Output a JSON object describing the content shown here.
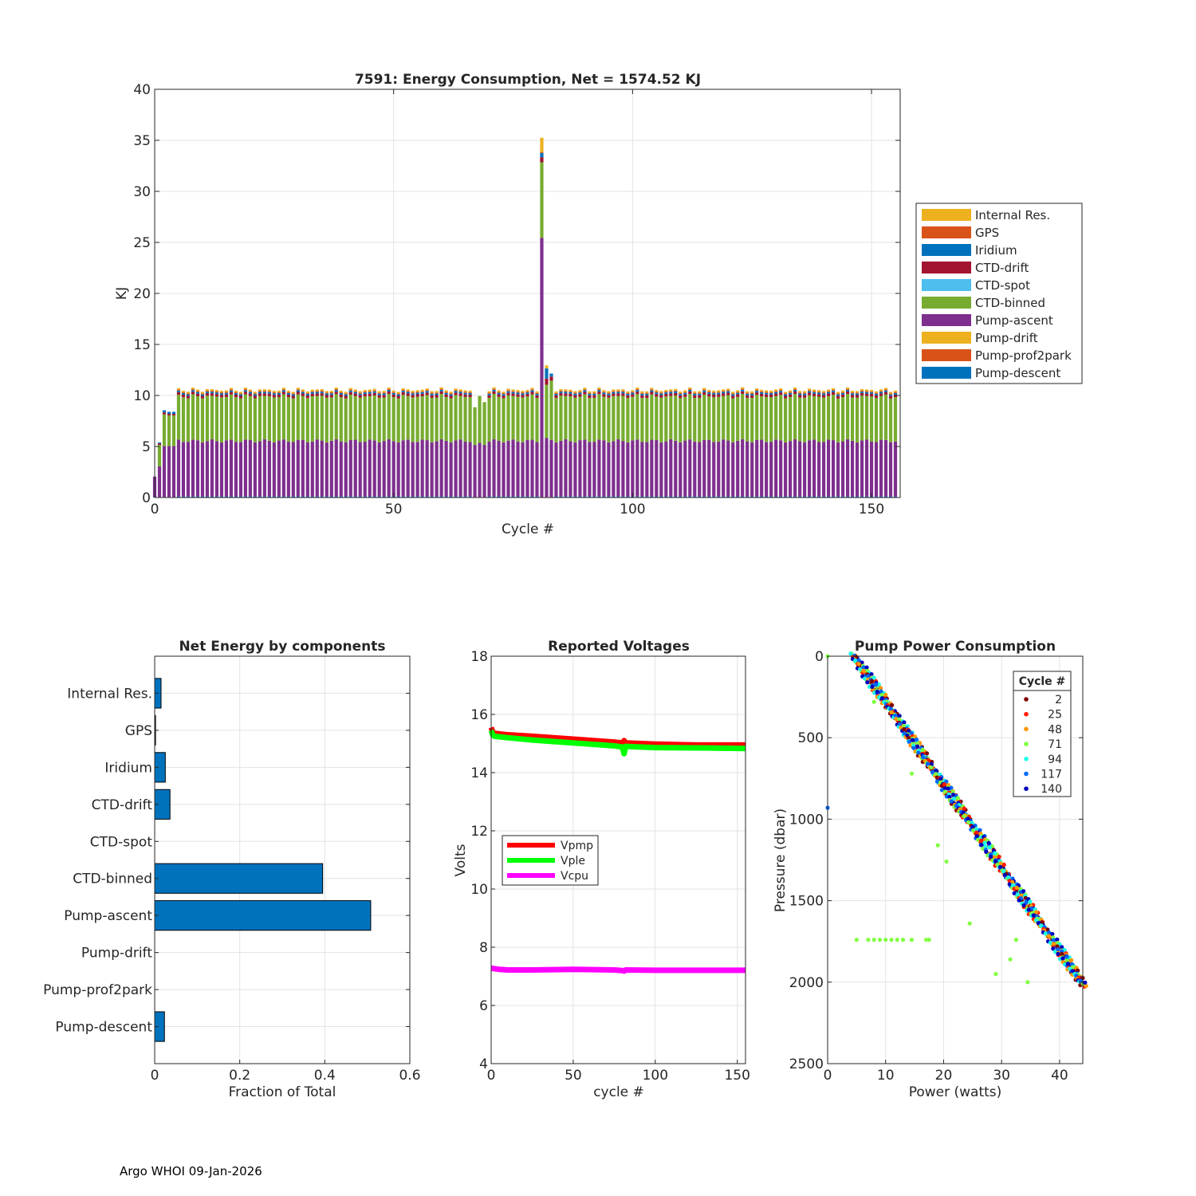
{
  "footer": "Argo WHOI 09-Jan-2026",
  "colors": {
    "internal_res": "#EDB120",
    "gps": "#D95319",
    "iridium": "#0072BD",
    "ctd_drift": "#A2142F",
    "ctd_spot": "#4DBEEE",
    "ctd_binned": "#77AC30",
    "pump_ascent": "#7E2F8E",
    "pump_drift": "#EDB120",
    "pump_prof2park": "#D95319",
    "pump_descent": "#0072BD",
    "bar_fill": "#0072BD",
    "vpmp": "#FF0000",
    "vple": "#00FF00",
    "vcpu": "#FF00FF"
  },
  "chart_data": [
    {
      "id": "energy",
      "type": "bar",
      "stacked": true,
      "title": "7591: Energy Consumption,  Net = 1574.52 KJ",
      "xlabel": "Cycle #",
      "ylabel": "KJ",
      "xlim": [
        0,
        156
      ],
      "ylim": [
        0,
        40
      ],
      "xticks": [
        0,
        50,
        100,
        150
      ],
      "yticks": [
        0,
        5,
        10,
        15,
        20,
        25,
        30,
        35,
        40
      ],
      "grid": true,
      "legend_position": "outside-right",
      "legend": [
        "Internal Res.",
        "GPS",
        "Iridium",
        "CTD-drift",
        "CTD-spot",
        "CTD-binned",
        "Pump-ascent",
        "Pump-drift",
        "Pump-prof2park",
        "Pump-descent"
      ],
      "cycles": {
        "count": 156,
        "typical_components": {
          "Pump-descent": 0.1,
          "Pump-ascent": 5.45,
          "CTD-binned": 4.35,
          "CTD-drift": 0.25,
          "Iridium": 0.15,
          "GPS": 0.1,
          "Internal Res.": 0.15
        },
        "special": [
          {
            "cycle": 0,
            "Pump-ascent": 2.0
          },
          {
            "cycle": 1,
            "Pump-ascent": 3.0,
            "CTD-binned": 2.1,
            "CTD-drift": 0.15,
            "Iridium": 0.1
          },
          {
            "cycle": 2,
            "Pump-ascent": 5.0,
            "CTD-binned": 3.1,
            "CTD-drift": 0.2,
            "Iridium": 0.2
          },
          {
            "cycle": 3,
            "Pump-ascent": 5.0,
            "CTD-binned": 3.0,
            "CTD-drift": 0.15,
            "Iridium": 0.2
          },
          {
            "cycle": 4,
            "Pump-ascent": 5.0,
            "CTD-binned": 3.0,
            "CTD-drift": 0.15,
            "Iridium": 0.2
          },
          {
            "cycle": 67,
            "Pump-ascent": 5.1,
            "CTD-binned": 3.7
          },
          {
            "cycle": 68,
            "Pump-ascent": 5.3,
            "CTD-binned": 4.6
          },
          {
            "cycle": 69,
            "Pump-ascent": 5.1,
            "CTD-binned": 4.2
          },
          {
            "cycle": 81,
            "Pump-ascent": 25.4,
            "CTD-binned": 7.4,
            "CTD-drift": 0.5,
            "Iridium": 0.4,
            "GPS": 0.1,
            "Internal Res.": 1.4
          },
          {
            "cycle": 82,
            "Pump-ascent": 5.8,
            "CTD-binned": 5.2,
            "CTD-drift": 0.6,
            "Iridium": 1.0,
            "Internal Res.": 0.3
          },
          {
            "cycle": 83,
            "Pump-ascent": 5.6,
            "CTD-binned": 5.8,
            "CTD-drift": 0.4,
            "Iridium": 0.3
          }
        ]
      }
    },
    {
      "id": "components",
      "type": "bar",
      "orientation": "horizontal",
      "title": "Net Energy by components",
      "xlabel": "Fraction of Total",
      "xlim": [
        0,
        0.6
      ],
      "xticks": [
        0,
        0.2,
        0.4,
        0.6
      ],
      "grid": true,
      "categories": [
        "Internal Res.",
        "GPS",
        "Iridium",
        "CTD-drift",
        "CTD-spot",
        "CTD-binned",
        "Pump-ascent",
        "Pump-drift",
        "Pump-prof2park",
        "Pump-descent"
      ],
      "values": [
        0.015,
        0.002,
        0.025,
        0.036,
        0.0,
        0.395,
        0.508,
        0.0,
        0.0,
        0.023
      ]
    },
    {
      "id": "voltages",
      "type": "line",
      "title": "Reported Voltages",
      "xlabel": "cycle #",
      "ylabel": "Volts",
      "xlim": [
        0,
        155
      ],
      "ylim": [
        4,
        18
      ],
      "xticks": [
        0,
        50,
        100,
        150
      ],
      "yticks": [
        4,
        6,
        8,
        10,
        12,
        14,
        16,
        18
      ],
      "grid": true,
      "legend_position": "center-left",
      "series": [
        {
          "name": "Vpmp",
          "x": [
            0,
            1,
            2,
            10,
            25,
            50,
            75,
            80,
            81,
            82,
            100,
            125,
            155
          ],
          "y": [
            15.55,
            15.4,
            15.35,
            15.3,
            15.25,
            15.15,
            15.05,
            15.02,
            15.1,
            15.02,
            14.98,
            14.95,
            14.95
          ]
        },
        {
          "name": "Vple",
          "x": [
            0,
            1,
            2,
            10,
            25,
            50,
            75,
            80,
            81,
            82,
            100,
            125,
            155
          ],
          "y": [
            15.45,
            15.3,
            15.25,
            15.2,
            15.12,
            15.02,
            14.92,
            14.88,
            14.65,
            14.9,
            14.86,
            14.85,
            14.83
          ]
        },
        {
          "name": "Vcpu",
          "x": [
            0,
            5,
            10,
            25,
            50,
            75,
            80,
            81,
            82,
            100,
            125,
            155
          ],
          "y": [
            7.28,
            7.24,
            7.22,
            7.22,
            7.24,
            7.22,
            7.2,
            7.18,
            7.22,
            7.21,
            7.21,
            7.21
          ]
        }
      ]
    },
    {
      "id": "pump",
      "type": "scatter",
      "title": "Pump Power Consumption",
      "xlabel": "Power (watts)",
      "ylabel": "Pressure (dbar)",
      "xlim": [
        0,
        44
      ],
      "ylim": [
        0,
        2500
      ],
      "y_reversed": true,
      "xticks": [
        0,
        10,
        20,
        30,
        40
      ],
      "yticks": [
        0,
        500,
        1000,
        1500,
        2000,
        2500
      ],
      "grid": true,
      "legend_title": "Cycle #",
      "legend_position": "top-right",
      "series": [
        {
          "name": "2",
          "color": "#800000"
        },
        {
          "name": "25",
          "color": "#FF1A00"
        },
        {
          "name": "48",
          "color": "#FF9900"
        },
        {
          "name": "71",
          "color": "#80FF40"
        },
        {
          "name": "94",
          "color": "#1AFFE6"
        },
        {
          "name": "117",
          "color": "#0066FF"
        },
        {
          "name": "140",
          "color": "#0000BB"
        }
      ],
      "trend": {
        "x": [
          4.5,
          44
        ],
        "y": [
          0,
          2010
        ]
      },
      "outliers": [
        {
          "x": 0,
          "y": 0
        },
        {
          "x": 0,
          "y": 930
        },
        {
          "x": 5,
          "y": 1740
        },
        {
          "x": 7,
          "y": 1740
        },
        {
          "x": 8,
          "y": 1740
        },
        {
          "x": 9,
          "y": 1740
        },
        {
          "x": 10,
          "y": 1740
        },
        {
          "x": 11,
          "y": 1740
        },
        {
          "x": 12,
          "y": 1740
        },
        {
          "x": 13,
          "y": 1740
        },
        {
          "x": 14.5,
          "y": 1740
        },
        {
          "x": 17,
          "y": 1740
        },
        {
          "x": 17.5,
          "y": 1740
        },
        {
          "x": 14.5,
          "y": 720
        },
        {
          "x": 19,
          "y": 1160
        },
        {
          "x": 20.5,
          "y": 1260
        },
        {
          "x": 24.5,
          "y": 1640
        },
        {
          "x": 29,
          "y": 1950
        },
        {
          "x": 31.5,
          "y": 1860
        },
        {
          "x": 32.5,
          "y": 1740
        },
        {
          "x": 34.5,
          "y": 2000
        },
        {
          "x": 8,
          "y": 280
        }
      ]
    }
  ]
}
